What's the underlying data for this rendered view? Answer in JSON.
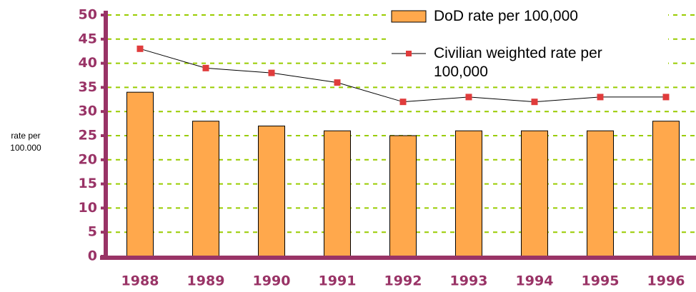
{
  "chart_data": {
    "type": "bar_line",
    "categories": [
      "1988",
      "1989",
      "1990",
      "1991",
      "1992",
      "1993",
      "1994",
      "1995",
      "1996"
    ],
    "series": [
      {
        "name": "DoD rate per 100,000",
        "type": "bar",
        "color": "#ffa84c",
        "values": [
          34,
          28,
          27,
          26,
          25,
          26,
          26,
          26,
          28
        ]
      },
      {
        "name": "Civilian weighted rate per 100,000",
        "type": "line",
        "color": "#e03c3c",
        "values": [
          43,
          39,
          38,
          36,
          32,
          33,
          32,
          33,
          33
        ]
      }
    ],
    "y_label": "rate per 100.000",
    "ylim": [
      0,
      50
    ],
    "yticks": [
      0,
      5,
      10,
      15,
      20,
      25,
      30,
      35,
      40,
      45,
      50
    ],
    "grid": true,
    "legend": "top-right"
  }
}
